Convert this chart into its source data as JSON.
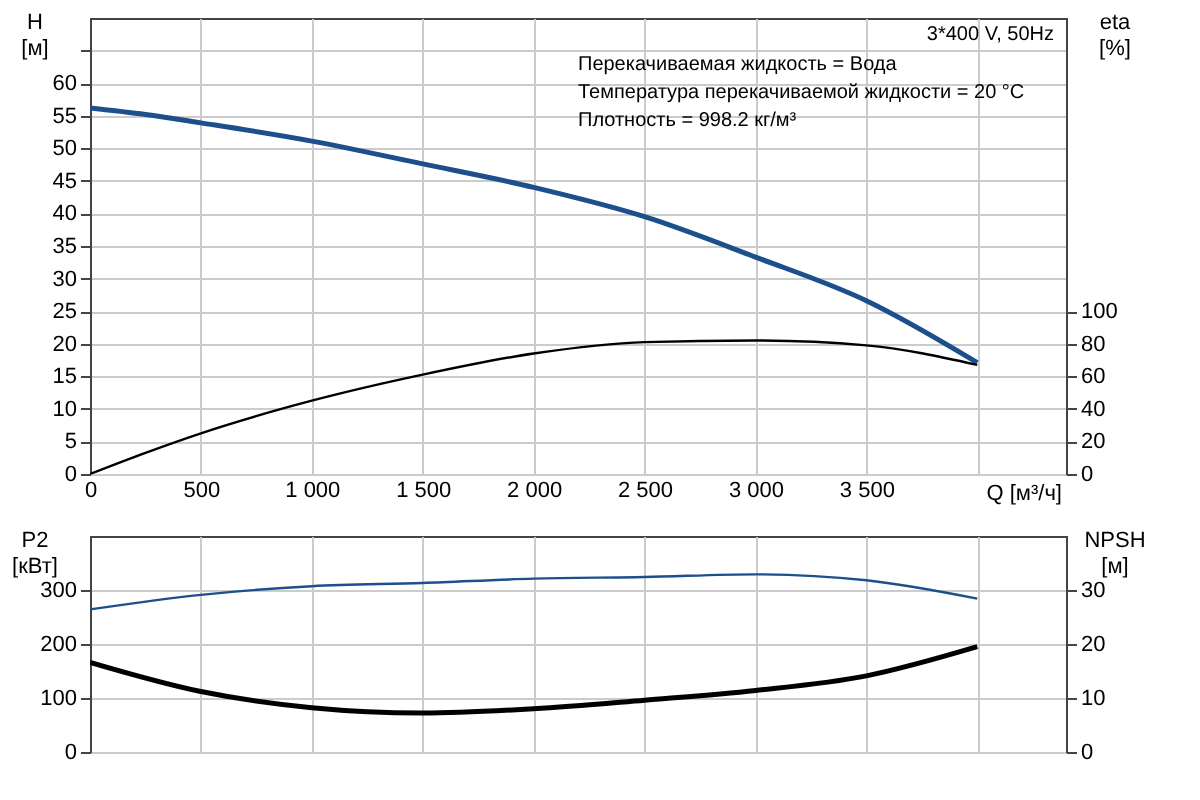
{
  "chart_data": [
    {
      "type": "line",
      "title": "3*400 V, 50Hz",
      "xlabel": "Q [м³/ч]",
      "ylabel": "H [м]",
      "y2label": "eta [%]",
      "annotations": [
        "Перекачиваемая жидкость = Вода",
        "Температура перекачиваемой жидкости = 20 °C",
        "Плотность = 998.2 кг/м³"
      ],
      "x": [
        0,
        250,
        500,
        1000,
        1500,
        2000,
        2500,
        3000,
        3500,
        4000
      ],
      "xlim": [
        0,
        4400
      ],
      "xticks": [
        0,
        500,
        {
          "value": 1000,
          "label": "1 000"
        },
        {
          "value": 1500,
          "label": "1 500"
        },
        {
          "value": 2000,
          "label": "2 000"
        },
        {
          "value": 2500,
          "label": "2 500"
        },
        {
          "value": 3000,
          "label": "3 000"
        },
        {
          "value": 3500,
          "label": "3 500"
        },
        {
          "value": 4000,
          "label": null
        }
      ],
      "ylim": [
        0,
        70
      ],
      "yticks": [
        0,
        5,
        10,
        15,
        20,
        25,
        30,
        35,
        40,
        45,
        50,
        55,
        60,
        {
          "value": 65,
          "label": null
        }
      ],
      "y2lim": [
        0,
        280
      ],
      "y2ticks": [
        0,
        20,
        40,
        60,
        80,
        100
      ],
      "grid": true,
      "series": [
        {
          "color": "#1d4f8c",
          "values": [
            56.2,
            55.2,
            53.9,
            51.1,
            47.6,
            44.0,
            39.5,
            33.3,
            26.6,
            17.1
          ]
        },
        {
          "color": "#000000",
          "axis": "y2",
          "values": [
            0,
            13,
            25,
            45,
            61,
            74,
            81,
            82,
            79,
            67
          ]
        }
      ]
    },
    {
      "type": "line",
      "ylabel": "P2 [кВт]",
      "y2label": "NPSH [м]",
      "x": [
        0,
        500,
        1000,
        1500,
        2000,
        2500,
        3000,
        3500,
        4000
      ],
      "xlim": [
        0,
        4400
      ],
      "xticks": [
        0,
        500,
        1000,
        1500,
        2000,
        2500,
        3000,
        3500,
        4000
      ],
      "ylim": [
        0,
        400
      ],
      "yticks": [
        0,
        100,
        200,
        300
      ],
      "y2lim": [
        0,
        40
      ],
      "y2ticks": [
        0,
        10,
        20,
        30
      ],
      "grid": true,
      "tick_labels": "y",
      "series": [
        {
          "color": "#1d4f8c",
          "values": [
            264,
            291,
            307,
            313,
            321,
            324,
            329,
            318,
            284
          ]
        },
        {
          "color": "#000000",
          "axis": "y2",
          "values": [
            16.6,
            11.2,
            8.2,
            7.2,
            8.0,
            9.6,
            11.4,
            14.1,
            19.5
          ]
        }
      ]
    }
  ]
}
